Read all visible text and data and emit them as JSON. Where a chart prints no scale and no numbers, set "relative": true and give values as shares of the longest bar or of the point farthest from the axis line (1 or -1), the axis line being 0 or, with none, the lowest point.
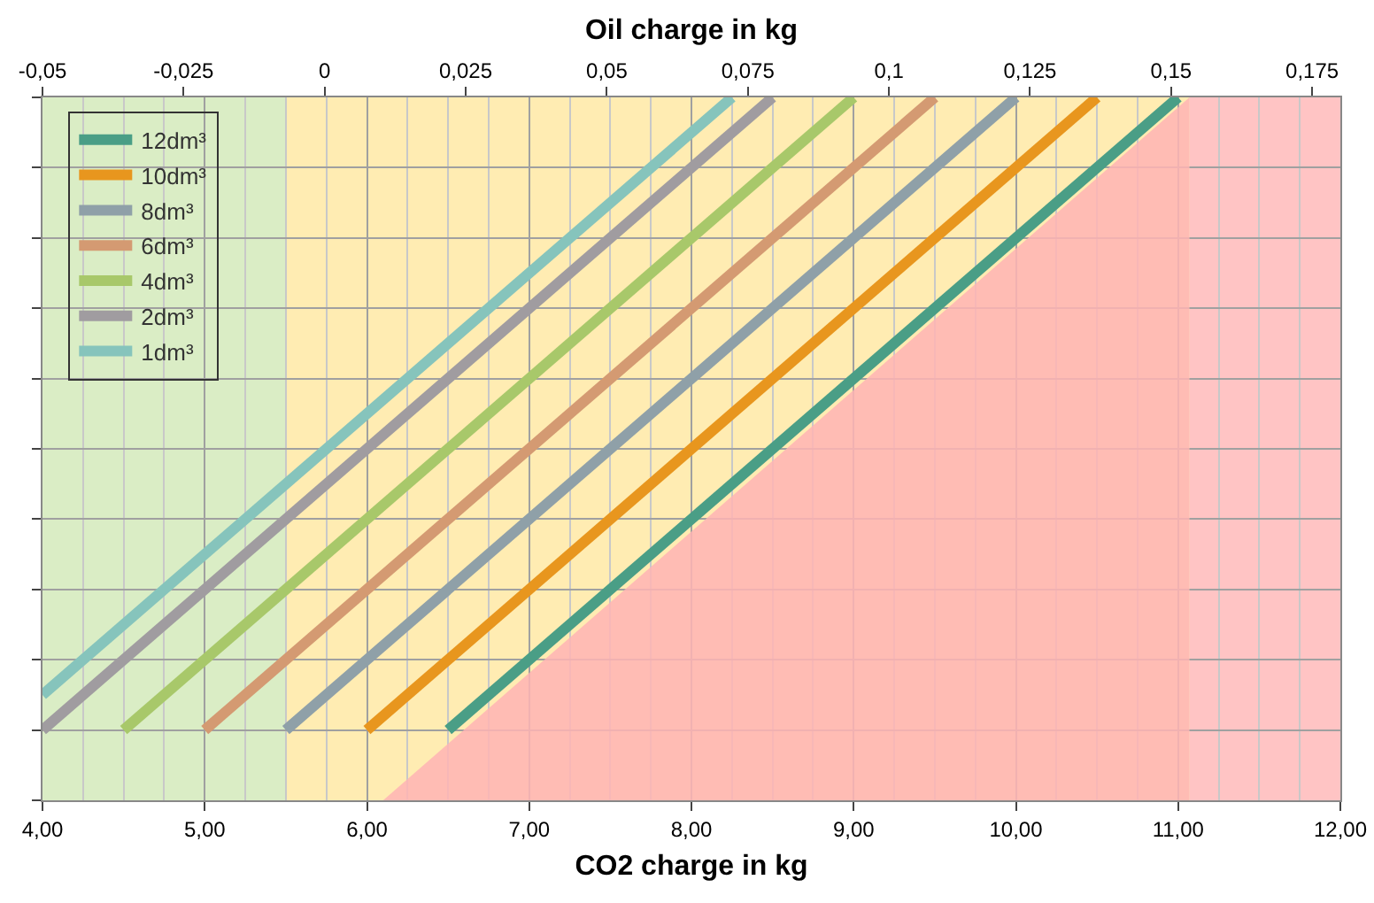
{
  "chart_data": {
    "type": "line",
    "xlabel": "CO2 charge in kg",
    "x2label": "Oil charge in kg",
    "relative": true,
    "xlim": [
      4,
      12
    ],
    "xticks": [
      {
        "value": 4,
        "label": "4,00"
      },
      {
        "value": 5,
        "label": "5,00"
      },
      {
        "value": 6,
        "label": "6,00"
      },
      {
        "value": 7,
        "label": "7,00"
      },
      {
        "value": 8,
        "label": "8,00"
      },
      {
        "value": 9,
        "label": "9,00"
      },
      {
        "value": 10,
        "label": "10,00"
      },
      {
        "value": 11,
        "label": "11,00"
      },
      {
        "value": 12,
        "label": "12,00"
      }
    ],
    "x2lim": [
      -0.05,
      0.18
    ],
    "x2ticks": [
      {
        "value": -0.05,
        "label": "-0,05"
      },
      {
        "value": -0.025,
        "label": "-0,025"
      },
      0,
      {
        "value": 0.025,
        "label": "0,025"
      },
      {
        "value": 0.05,
        "label": "0,05"
      },
      {
        "value": 0.075,
        "label": "0,075"
      },
      {
        "value": 0.1,
        "label": "0,1"
      },
      {
        "value": 0.125,
        "label": "0,125"
      },
      {
        "value": 0.15,
        "label": "0,15"
      },
      {
        "value": 0.175,
        "label": "0,175"
      }
    ],
    "grid": true,
    "legend": "top left",
    "line_style": "solid",
    "bands": [
      {
        "axis": "x",
        "from": 4,
        "to": 5.5,
        "color": "#b6dc8c"
      },
      {
        "axis": "x",
        "from": 5.5,
        "to": 11.07,
        "color": "#ffd966"
      },
      {
        "axis": "x",
        "from": 11.07,
        "to": 12,
        "color": "#ff8a8a"
      }
    ],
    "series": [
      {
        "type": "area",
        "color": "#ffb4b4",
        "x": [
          6.1,
          11.07
        ],
        "values": [
          0,
          1
        ]
      },
      {
        "name": "12dm³",
        "color": "#4a9e86",
        "x": [
          6.5,
          11.0
        ],
        "values": [
          0.1,
          1
        ]
      },
      {
        "name": "10dm³",
        "color": "#e8961e",
        "x": [
          6.0,
          10.5
        ],
        "values": [
          0.1,
          1
        ]
      },
      {
        "name": "8dm³",
        "color": "#8fa0a8",
        "x": [
          5.5,
          10.0
        ],
        "values": [
          0.1,
          1
        ]
      },
      {
        "name": "6dm³",
        "color": "#d49a72",
        "x": [
          5.0,
          9.5
        ],
        "values": [
          0.1,
          1
        ]
      },
      {
        "name": "4dm³",
        "color": "#a8c86a",
        "x": [
          4.5,
          9.0
        ],
        "values": [
          0.1,
          1
        ]
      },
      {
        "name": "2dm³",
        "color": "#a09ca0",
        "x": [
          4.0,
          8.5
        ],
        "values": [
          0.1,
          1
        ]
      },
      {
        "name": "1dm³",
        "color": "#86c4bc",
        "x": [
          4.0,
          8.25
        ],
        "values": [
          0.15,
          1
        ]
      }
    ]
  }
}
